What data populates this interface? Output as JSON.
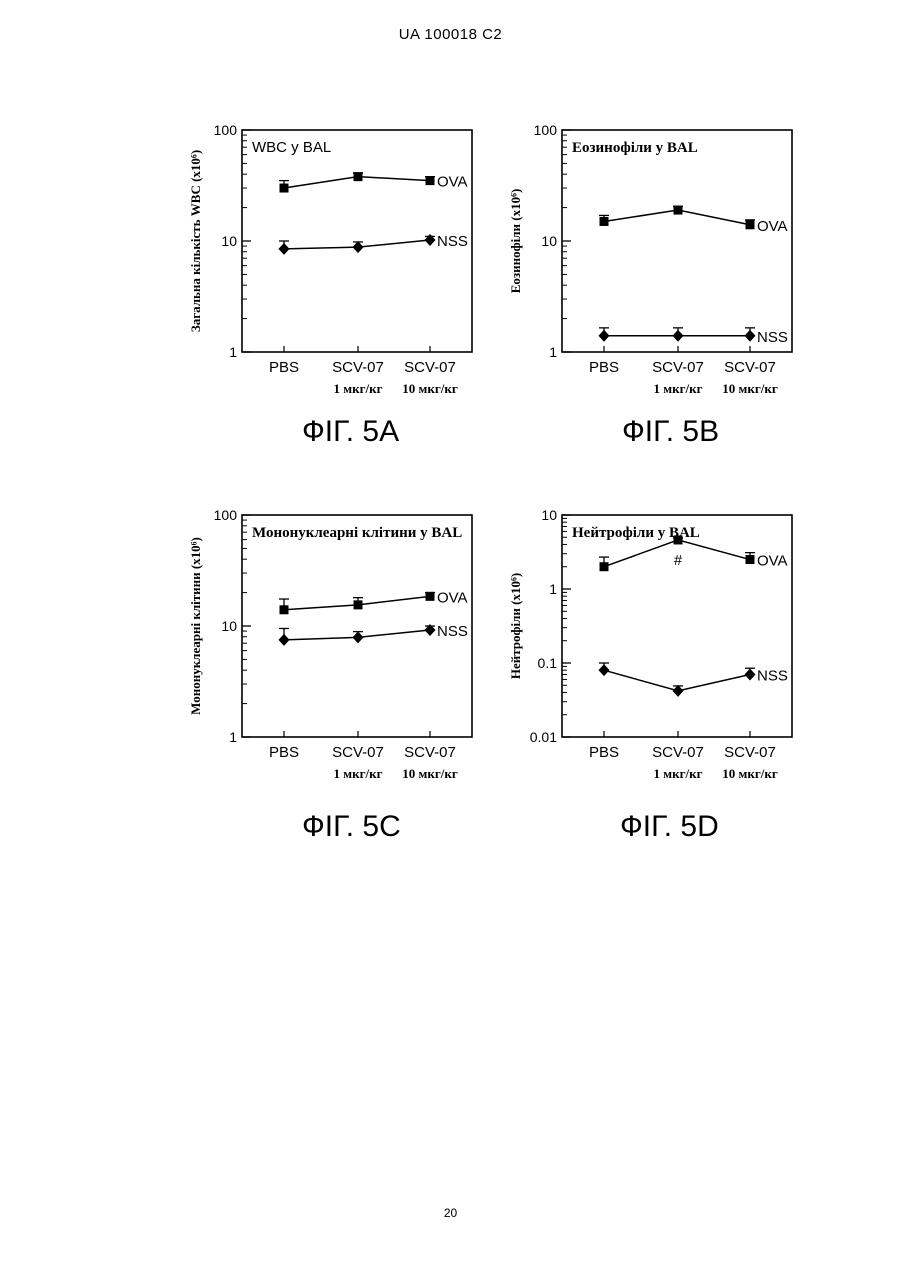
{
  "header": {
    "text": "UA   100018   C2"
  },
  "footer": {
    "page_number": "20"
  },
  "styles": {
    "ink": "#000000",
    "background": "#ffffff"
  },
  "chart_data": [
    {
      "id": "5A",
      "type": "line",
      "figure_label": "ФІГ. 5А",
      "title": "WBC у BAL",
      "ylabel": "Загальна кількість WBC (x10⁶)",
      "y_scale": "log",
      "ylim": [
        1,
        100
      ],
      "y_ticks": [
        "1",
        "10",
        "100"
      ],
      "categories": [
        {
          "line1": "PBS",
          "line2": ""
        },
        {
          "line1": "SCV-07",
          "line2": "1 мкг/кг"
        },
        {
          "line1": "SCV-07",
          "line2": "10 мкг/кг"
        }
      ],
      "series": [
        {
          "name": "OVA",
          "marker": "square",
          "values": [
            30,
            38,
            35
          ],
          "err": [
            5,
            3,
            3
          ]
        },
        {
          "name": "NSS",
          "marker": "diamond",
          "values": [
            8.5,
            8.8,
            10.2
          ],
          "err": [
            1.5,
            1,
            0.8
          ]
        }
      ],
      "annotations": []
    },
    {
      "id": "5B",
      "type": "line",
      "figure_label": "ФІГ. 5В",
      "title": "Еозинофіли у BAL",
      "ylabel": "Еозинофіли (x10⁶)",
      "y_scale": "log",
      "ylim": [
        1,
        100
      ],
      "y_ticks": [
        "1",
        "10",
        "100"
      ],
      "categories": [
        {
          "line1": "PBS",
          "line2": ""
        },
        {
          "line1": "SCV-07",
          "line2": "1 мкг/кг"
        },
        {
          "line1": "SCV-07",
          "line2": "10 мкг/кг"
        }
      ],
      "series": [
        {
          "name": "OVA",
          "marker": "square",
          "values": [
            15,
            19,
            14
          ],
          "err": [
            2,
            1.5,
            1.5
          ]
        },
        {
          "name": "NSS",
          "marker": "diamond",
          "values": [
            1.4,
            1.4,
            1.4
          ],
          "err": [
            0.25,
            0.25,
            0.25
          ]
        }
      ],
      "annotations": []
    },
    {
      "id": "5C",
      "type": "line",
      "figure_label": "ФІГ. 5С",
      "title": "Мононуклеарні клітини у BAL",
      "ylabel": "Мононуклеарні клітини (x10⁶)",
      "y_scale": "log",
      "ylim": [
        1,
        100
      ],
      "y_ticks": [
        "1",
        "10",
        "100"
      ],
      "categories": [
        {
          "line1": "PBS",
          "line2": ""
        },
        {
          "line1": "SCV-07",
          "line2": "1 мкг/кг"
        },
        {
          "line1": "SCV-07",
          "line2": "10 мкг/кг"
        }
      ],
      "series": [
        {
          "name": "OVA",
          "marker": "square",
          "values": [
            14,
            15.5,
            18.5
          ],
          "err": [
            3.5,
            2.5,
            1.5
          ]
        },
        {
          "name": "NSS",
          "marker": "diamond",
          "values": [
            7.5,
            7.9,
            9.2
          ],
          "err": [
            2,
            1,
            0.8
          ]
        }
      ],
      "annotations": []
    },
    {
      "id": "5D",
      "type": "line",
      "figure_label": "ФІГ. 5D",
      "title": "Нейтрофіли у BAL",
      "ylabel": "Нейтрофіли (x10⁶)",
      "y_scale": "log",
      "ylim": [
        0.01,
        10
      ],
      "y_ticks": [
        "0.01",
        "0.1",
        "1",
        "10"
      ],
      "categories": [
        {
          "line1": "PBS",
          "line2": ""
        },
        {
          "line1": "SCV-07",
          "line2": "1 мкг/кг"
        },
        {
          "line1": "SCV-07",
          "line2": "10 мкг/кг"
        }
      ],
      "series": [
        {
          "name": "OVA",
          "marker": "square",
          "values": [
            2.0,
            4.6,
            2.5
          ],
          "err": [
            0.7,
            0.3,
            0.6
          ]
        },
        {
          "name": "NSS",
          "marker": "diamond",
          "values": [
            0.08,
            0.042,
            0.07
          ],
          "err": [
            0.02,
            0.007,
            0.015
          ]
        }
      ],
      "annotations": [
        {
          "text": "#",
          "category": 1
        }
      ]
    }
  ]
}
